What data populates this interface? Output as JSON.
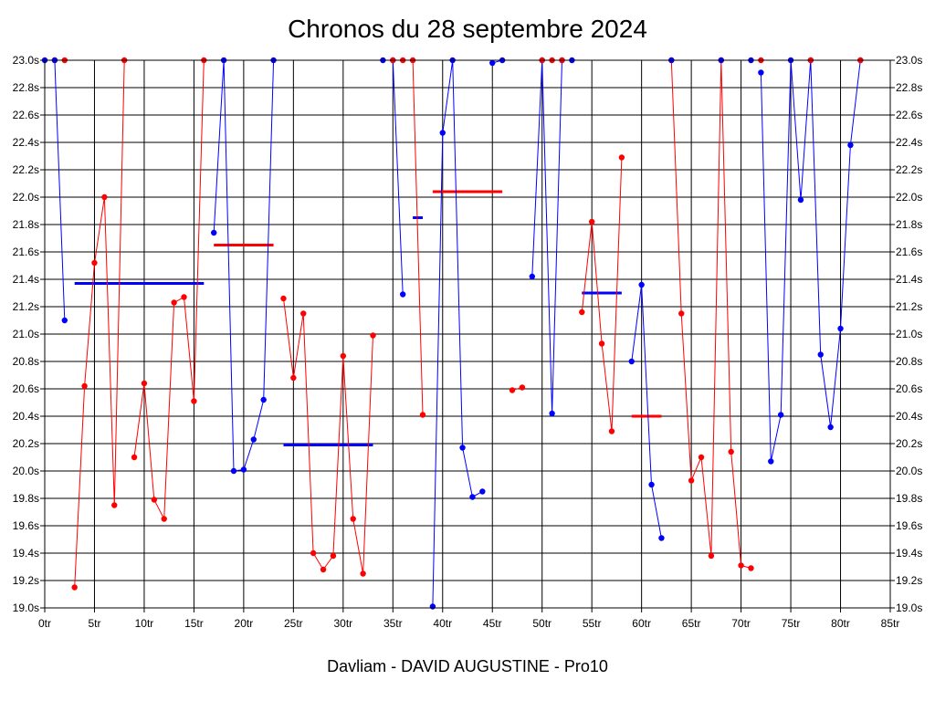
{
  "page": {
    "title": "Chronos du 28 septembre 2024",
    "footer": "Davliam - DAVID AUGUSTINE - Pro10"
  },
  "chart_data": {
    "type": "line",
    "title": "Chronos du 28 septembre 2024",
    "xlabel": "",
    "ylabel": "",
    "xlim": [
      0,
      85
    ],
    "ylim": [
      19.0,
      23.0
    ],
    "grid": true,
    "x_tick_labels": [
      "0tr",
      "5tr",
      "10tr",
      "15tr",
      "20tr",
      "25tr",
      "30tr",
      "35tr",
      "40tr",
      "45tr",
      "50tr",
      "55tr",
      "60tr",
      "65tr",
      "70tr",
      "75tr",
      "80tr",
      "85tr"
    ],
    "y_tick_labels": [
      "23.0s",
      "22.8s",
      "22.6s",
      "22.4s",
      "22.2s",
      "22.0s",
      "21.8s",
      "21.6s",
      "21.4s",
      "21.2s",
      "21.0s",
      "20.8s",
      "20.6s",
      "20.4s",
      "20.2s",
      "20.0s",
      "19.8s",
      "19.6s",
      "19.4s",
      "19.2s",
      "19.0s"
    ],
    "colors": {
      "red": "#ff0000",
      "blue": "#0000ff"
    },
    "series": [
      {
        "color": "red",
        "points": [
          [
            1,
            23.0
          ],
          [
            2,
            23.0
          ]
        ]
      },
      {
        "color": "blue",
        "points": [
          [
            0,
            23.0
          ],
          [
            1,
            23.0
          ],
          [
            2,
            21.1
          ]
        ]
      },
      {
        "color": "red",
        "points": [
          [
            3,
            19.15
          ],
          [
            4,
            20.62
          ],
          [
            5,
            21.52
          ],
          [
            6,
            22.0
          ],
          [
            7,
            19.75
          ],
          [
            8,
            23.0
          ]
        ]
      },
      {
        "color": "red",
        "points": [
          [
            9,
            20.1
          ],
          [
            10,
            20.64
          ],
          [
            11,
            19.79
          ],
          [
            12,
            19.65
          ],
          [
            13,
            21.23
          ],
          [
            14,
            21.27
          ],
          [
            15,
            20.51
          ],
          [
            16,
            23.0
          ]
        ]
      },
      {
        "color": "blue",
        "points": [
          [
            17,
            21.74
          ],
          [
            18,
            23.0
          ],
          [
            19,
            20.0
          ],
          [
            20,
            20.01
          ],
          [
            21,
            20.23
          ],
          [
            22,
            20.52
          ],
          [
            23,
            23.0
          ]
        ]
      },
      {
        "color": "red",
        "points": [
          [
            24,
            21.26
          ],
          [
            25,
            20.68
          ],
          [
            26,
            21.15
          ],
          [
            27,
            19.4
          ],
          [
            28,
            19.28
          ],
          [
            29,
            19.38
          ],
          [
            30,
            20.84
          ],
          [
            31,
            19.65
          ],
          [
            32,
            19.25
          ],
          [
            33,
            20.99
          ]
        ]
      },
      {
        "color": "blue",
        "points": [
          [
            34,
            23.0
          ],
          [
            35,
            23.0
          ],
          [
            36,
            21.29
          ]
        ]
      },
      {
        "color": "red",
        "points": [
          [
            35,
            23.0
          ],
          [
            36,
            23.0
          ]
        ]
      },
      {
        "color": "red",
        "points": [
          [
            37,
            23.0
          ],
          [
            38,
            20.41
          ]
        ]
      },
      {
        "color": "blue",
        "points": [
          [
            39,
            19.01
          ],
          [
            40,
            22.47
          ],
          [
            41,
            23.0
          ],
          [
            42,
            20.17
          ],
          [
            43,
            19.81
          ],
          [
            44,
            19.85
          ]
        ]
      },
      {
        "color": "blue",
        "points": [
          [
            45,
            22.98
          ],
          [
            46,
            23.0
          ]
        ]
      },
      {
        "color": "red",
        "points": [
          [
            47,
            20.59
          ],
          [
            48,
            20.61
          ]
        ]
      },
      {
        "color": "blue",
        "points": [
          [
            49,
            21.42
          ],
          [
            50,
            23.0
          ],
          [
            51,
            20.42
          ],
          [
            52,
            23.0
          ],
          [
            53,
            23.0
          ]
        ]
      },
      {
        "color": "red",
        "points": [
          [
            50,
            23.0
          ],
          [
            51,
            23.0
          ],
          [
            52,
            23.0
          ]
        ]
      },
      {
        "color": "red",
        "points": [
          [
            54,
            21.16
          ],
          [
            55,
            21.82
          ],
          [
            56,
            20.93
          ],
          [
            57,
            20.29
          ],
          [
            58,
            22.29
          ]
        ]
      },
      {
        "color": "blue",
        "points": [
          [
            59,
            20.8
          ],
          [
            60,
            21.36
          ],
          [
            61,
            19.9
          ],
          [
            62,
            19.51
          ]
        ]
      },
      {
        "color": "red",
        "points": [
          [
            63,
            23.0
          ],
          [
            64,
            21.15
          ],
          [
            65,
            19.93
          ],
          [
            66,
            20.1
          ],
          [
            67,
            19.38
          ],
          [
            68,
            23.0
          ],
          [
            69,
            20.14
          ],
          [
            70,
            19.31
          ],
          [
            71,
            19.29
          ]
        ]
      },
      {
        "color": "blue",
        "points": [
          [
            63,
            23.0
          ],
          [
            68,
            23.0
          ],
          [
            71,
            23.0
          ]
        ]
      },
      {
        "color": "blue",
        "points": [
          [
            72,
            22.91
          ],
          [
            73,
            20.07
          ],
          [
            74,
            20.41
          ],
          [
            75,
            23.0
          ],
          [
            76,
            21.98
          ],
          [
            77,
            23.0
          ],
          [
            78,
            20.85
          ],
          [
            79,
            20.32
          ],
          [
            80,
            21.04
          ],
          [
            81,
            22.38
          ],
          [
            82,
            23.0
          ]
        ]
      },
      {
        "color": "red",
        "points": [
          [
            72,
            23.0
          ],
          [
            77,
            23.0
          ],
          [
            82,
            23.0
          ]
        ]
      }
    ],
    "averages": [
      {
        "color": "blue",
        "x_start": 3,
        "x_end": 16,
        "y": 21.37
      },
      {
        "color": "red",
        "x_start": 17,
        "x_end": 23,
        "y": 21.65
      },
      {
        "color": "blue",
        "x_start": 24,
        "x_end": 33,
        "y": 20.19
      },
      {
        "color": "blue",
        "x_start": 37,
        "x_end": 38,
        "y": 21.85
      },
      {
        "color": "red",
        "x_start": 39,
        "x_end": 46,
        "y": 22.04
      },
      {
        "color": "blue",
        "x_start": 54,
        "x_end": 58,
        "y": 21.3
      },
      {
        "color": "red",
        "x_start": 59,
        "x_end": 62,
        "y": 20.4
      }
    ]
  }
}
